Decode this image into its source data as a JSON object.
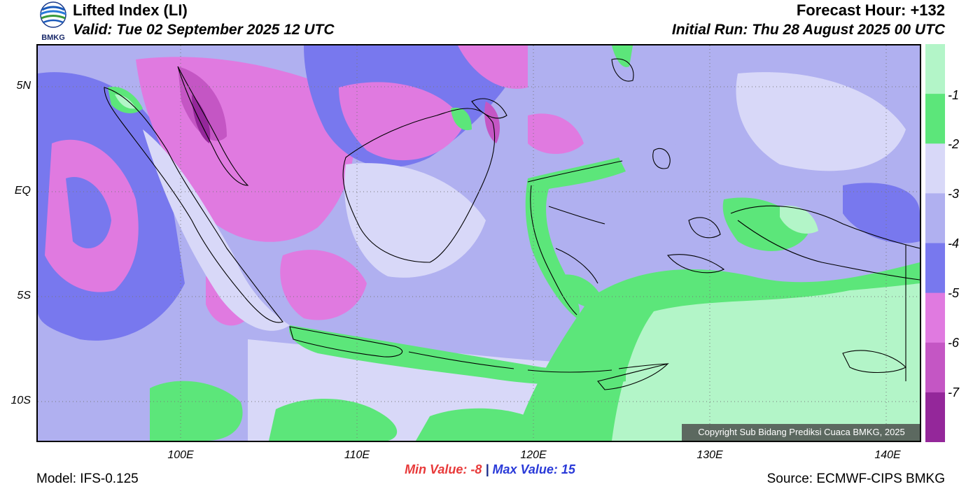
{
  "header": {
    "logo_text": "BMKG",
    "title": "Lifted Index (LI)",
    "valid": "Valid: Tue 02 September 2025 12 UTC",
    "forecast_hour": "Forecast Hour: +132",
    "initial_run": "Initial Run: Thu 28 August 2025 00 UTC"
  },
  "axes": {
    "lat_labels": [
      "5N",
      "EQ",
      "5S",
      "10S"
    ],
    "lon_labels": [
      "100E",
      "110E",
      "120E",
      "130E",
      "140E"
    ]
  },
  "colorbar": {
    "labels": [
      "-1",
      "-2",
      "-3",
      "-4",
      "-5",
      "-6",
      "-7"
    ],
    "colors": [
      "#b3f5c8",
      "#5ce67a",
      "#d8d8f8",
      "#b0b0f0",
      "#7878ee",
      "#e07ae0",
      "#c456c4",
      "#94279a"
    ]
  },
  "stats": {
    "min_label": "Min Value:",
    "min_value": "-8",
    "separator": "|",
    "max_label": "Max Value:",
    "max_value": "15"
  },
  "footer": {
    "model": "Model: IFS-0.125",
    "source": "Source: ECMWF-CIPS BMKG",
    "copyright": "Copyright Sub Bidang Prediksi Cuaca BMKG, 2025"
  }
}
